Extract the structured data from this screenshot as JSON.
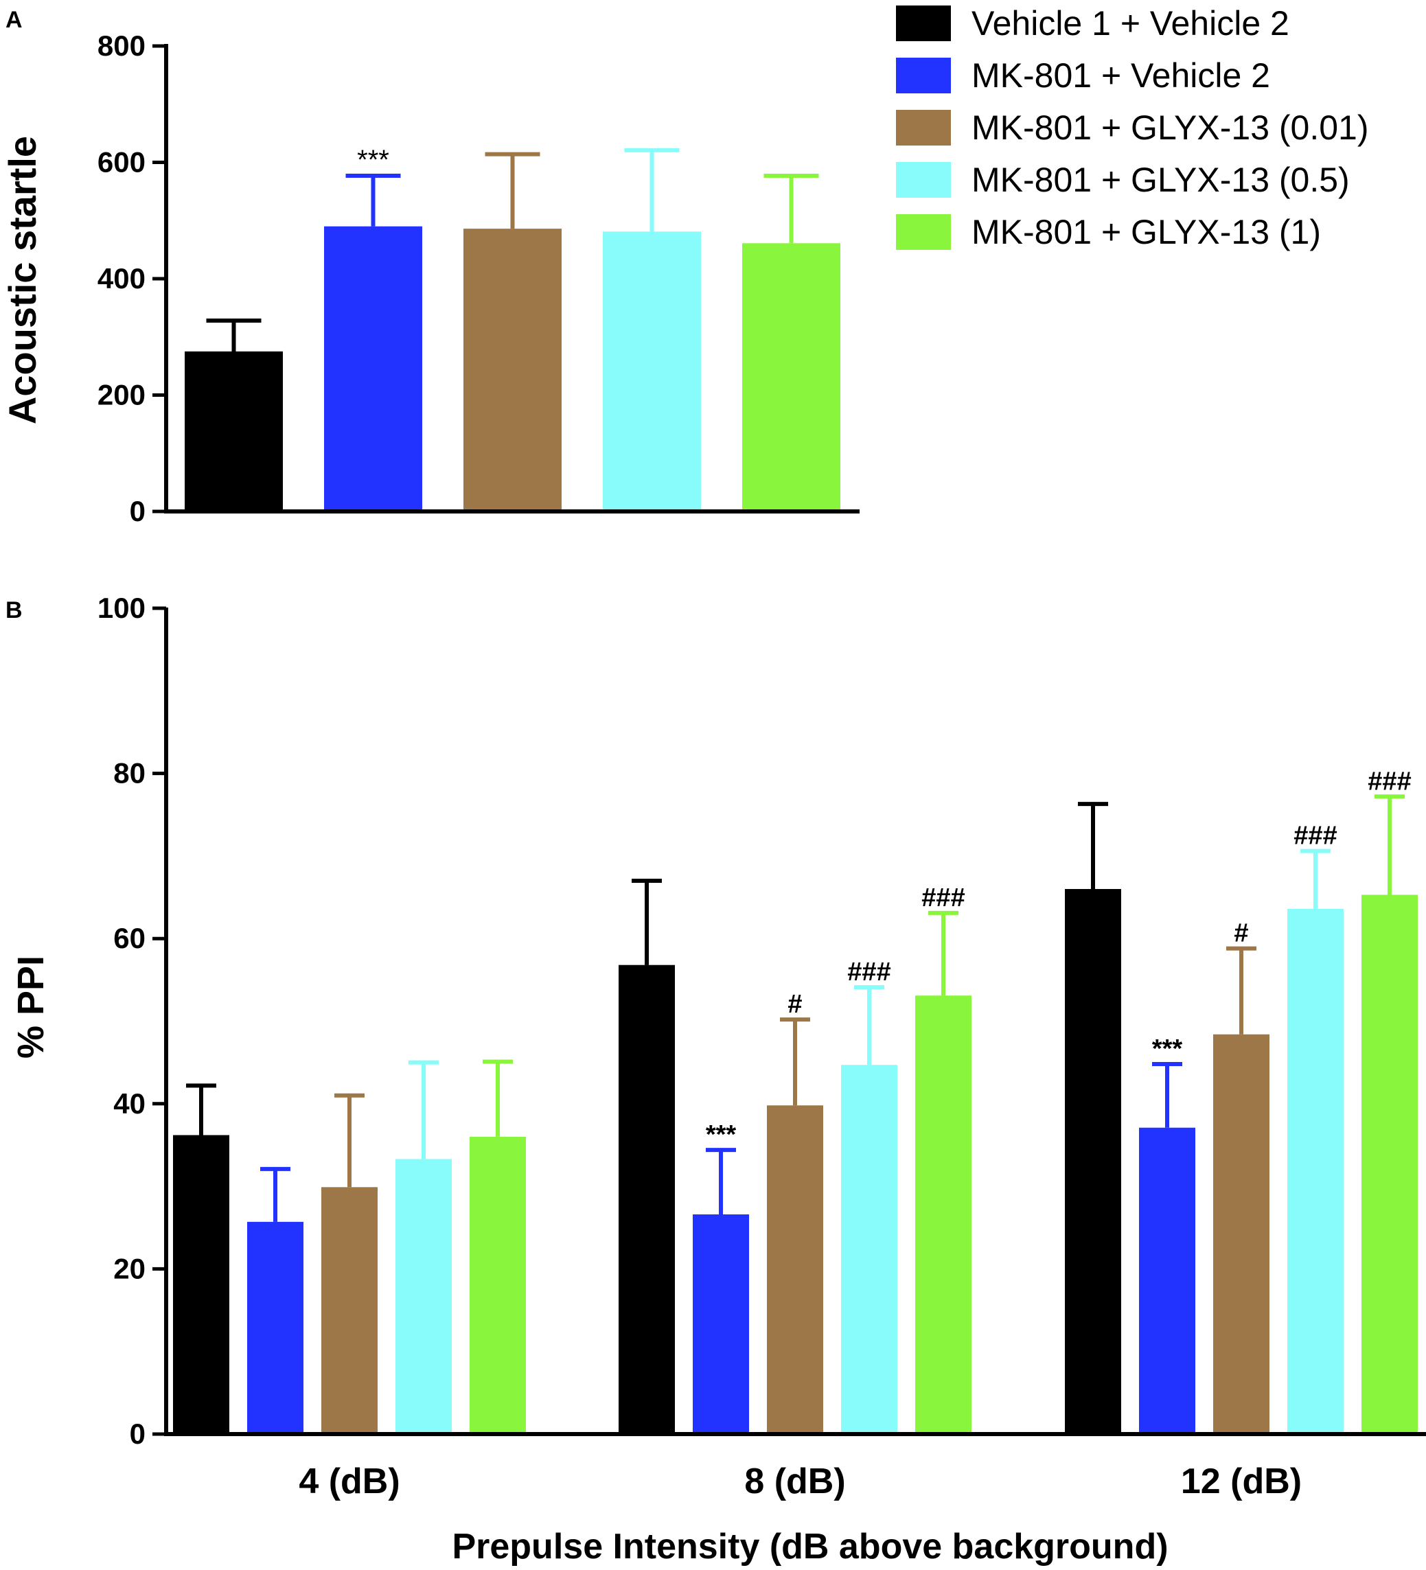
{
  "legend": [
    {
      "label": "Vehicle 1 + Vehicle 2",
      "color": "#000000"
    },
    {
      "label": "MK-801 + Vehicle 2",
      "color": "#2233ff"
    },
    {
      "label": "MK-801 + GLYX-13 (0.01)",
      "color": "#9e7748"
    },
    {
      "label": "MK-801 + GLYX-13 (0.5)",
      "color": "#88fbfb"
    },
    {
      "label": "MK-801 + GLYX-13 (1)",
      "color": "#8af53d"
    }
  ],
  "chart_data": [
    {
      "panel": "A",
      "type": "bar",
      "title": "",
      "xlabel": "",
      "ylabel": "Acoustic startle",
      "ylim": [
        0,
        800
      ],
      "yticks": [
        0,
        200,
        400,
        600,
        800
      ],
      "categories": [
        "Vehicle 1 + Vehicle 2",
        "MK-801 + Vehicle 2",
        "MK-801 + GLYX-13 (0.01)",
        "MK-801 + GLYX-13 (0.5)",
        "MK-801 + GLYX-13 (1)"
      ],
      "values": [
        275,
        490,
        486,
        481,
        461
      ],
      "errors": [
        53,
        87,
        128,
        140,
        116
      ],
      "annotations": [
        "",
        "***",
        "",
        "",
        ""
      ]
    },
    {
      "panel": "B",
      "type": "bar",
      "title": "",
      "xlabel": "Prepulse Intensity (dB above background)",
      "ylabel": "% PPI",
      "ylim": [
        0,
        100
      ],
      "yticks": [
        0,
        20,
        40,
        60,
        80,
        100
      ],
      "categories": [
        "4 (dB)",
        "8 (dB)",
        "12 (dB)"
      ],
      "series": [
        {
          "name": "Vehicle 1 + Vehicle 2",
          "values": [
            36.2,
            56.8,
            66.0
          ],
          "errors": [
            6.0,
            10.2,
            10.3
          ],
          "annotations": [
            "",
            "",
            ""
          ]
        },
        {
          "name": "MK-801 + Vehicle 2",
          "values": [
            25.7,
            26.6,
            37.1
          ],
          "errors": [
            6.4,
            7.8,
            7.7
          ],
          "annotations": [
            "",
            "***",
            "***"
          ]
        },
        {
          "name": "MK-801 + GLYX-13 (0.01)",
          "values": [
            29.9,
            39.8,
            48.4
          ],
          "errors": [
            11.1,
            10.4,
            10.4
          ],
          "annotations": [
            "",
            "#",
            "#"
          ]
        },
        {
          "name": "MK-801 + GLYX-13 (0.5)",
          "values": [
            33.3,
            44.7,
            63.6
          ],
          "errors": [
            11.7,
            9.4,
            7.0
          ],
          "annotations": [
            "",
            "###",
            "###"
          ]
        },
        {
          "name": "MK-801 + GLYX-13 (1)",
          "values": [
            36.0,
            53.1,
            65.3
          ],
          "errors": [
            9.1,
            10.0,
            11.9
          ],
          "annotations": [
            "",
            "###",
            "###"
          ]
        }
      ]
    }
  ]
}
